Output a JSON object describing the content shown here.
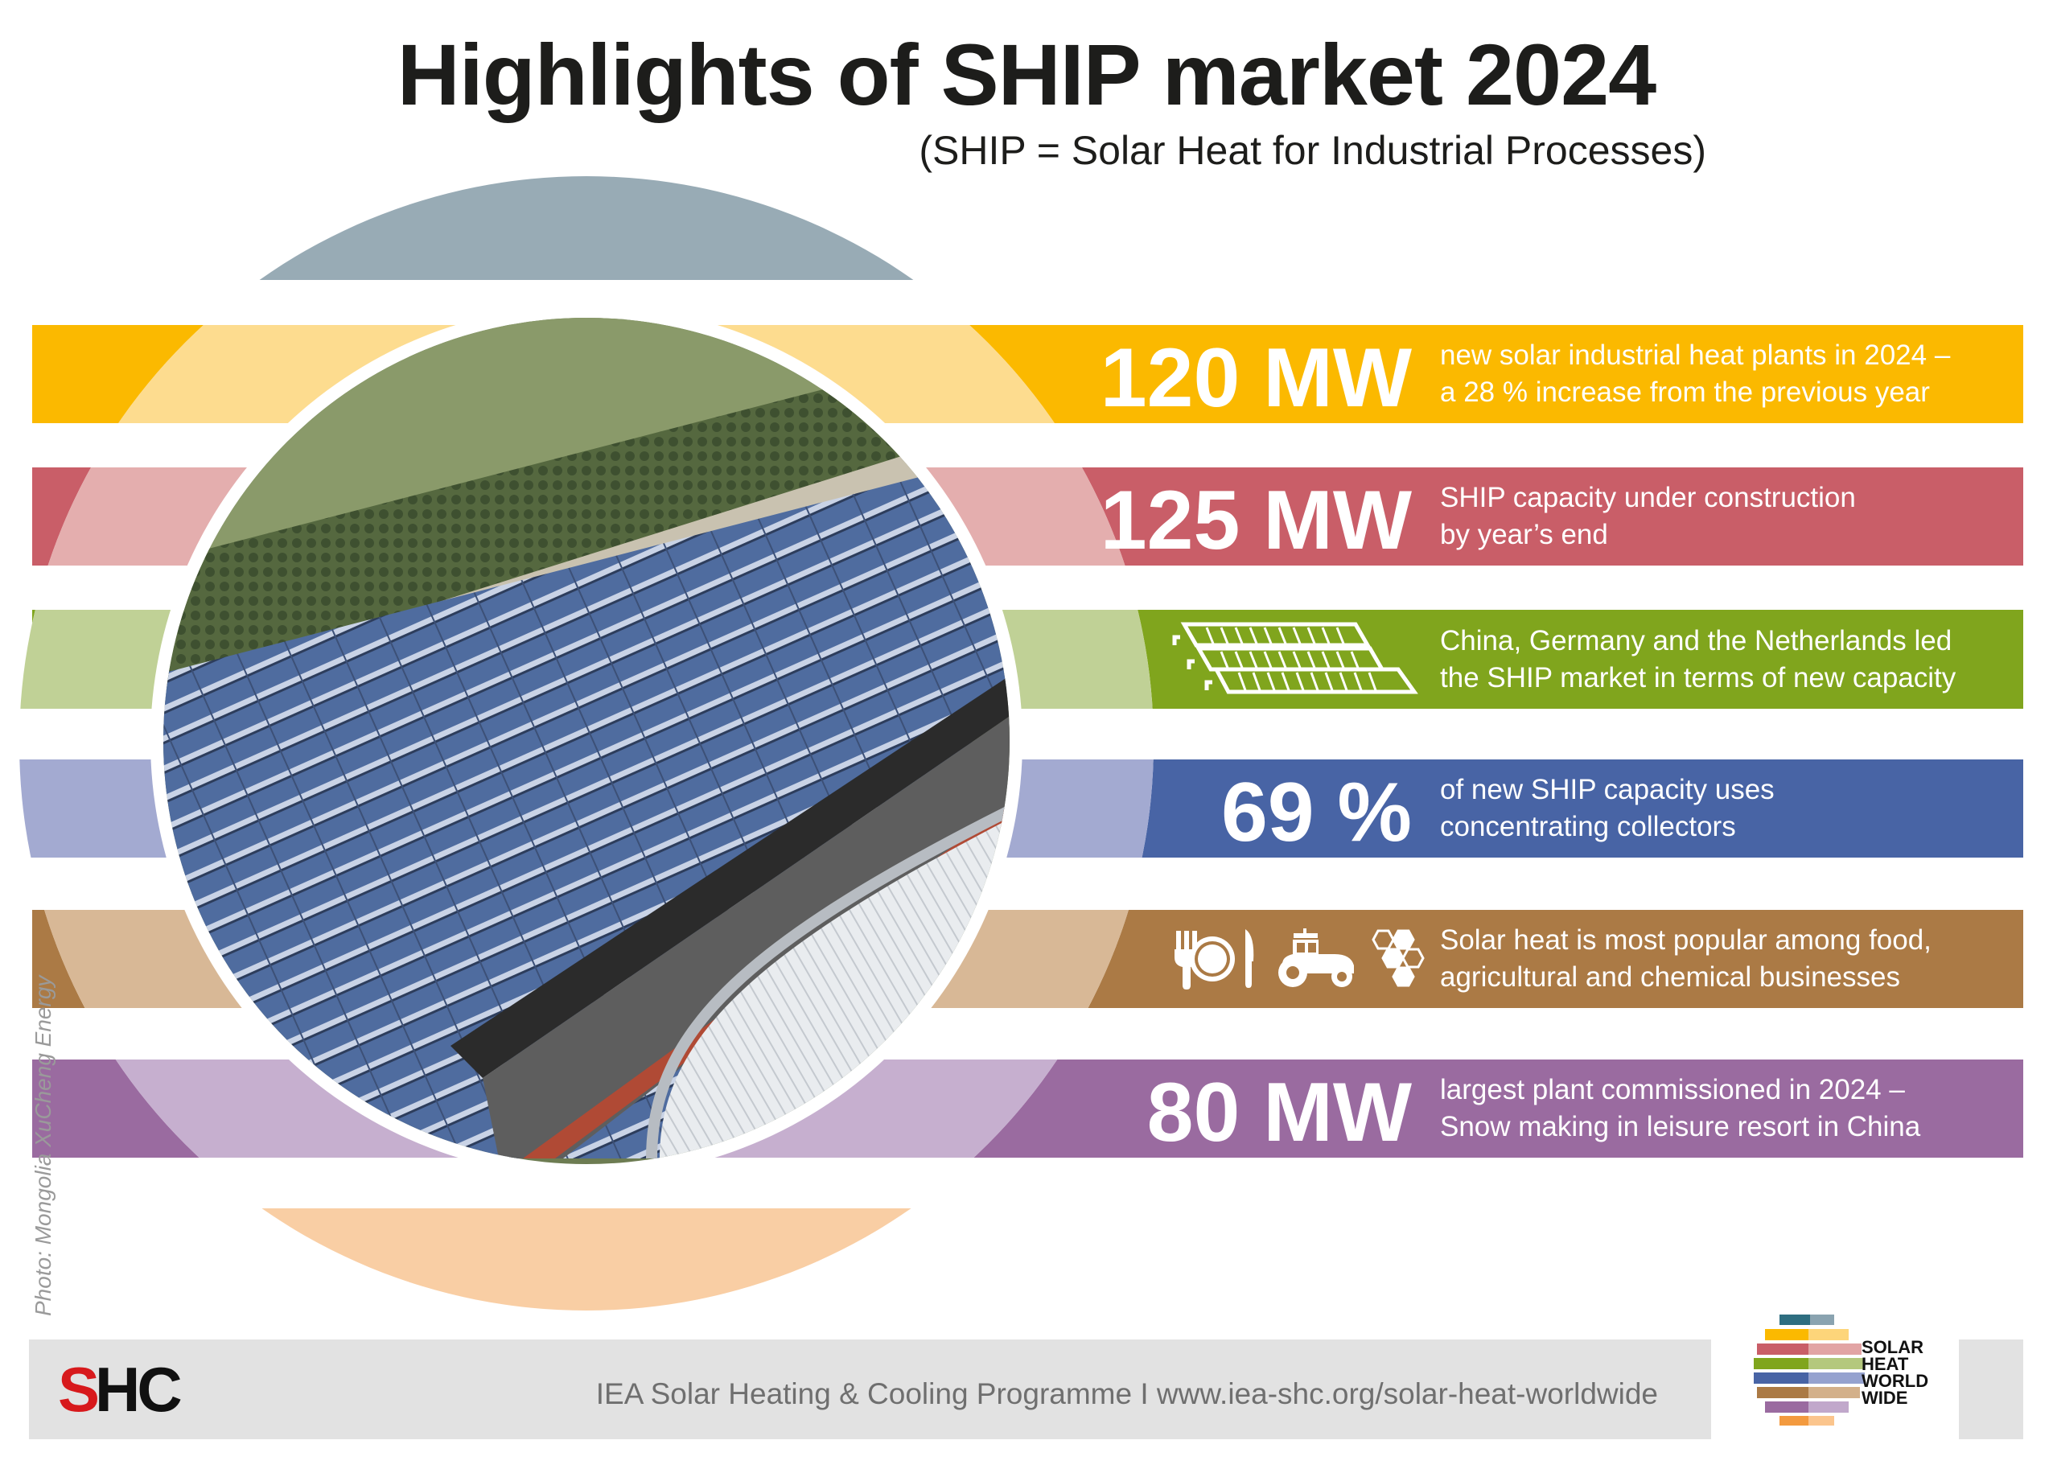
{
  "header": {
    "title": "Highlights of SHIP market 2024",
    "subtitle": "(SHIP = Solar Heat for Industrial Processes)"
  },
  "highlights": [
    {
      "value": "120 MW",
      "line1": "new solar industrial heat plants in 2024 –",
      "line2": "a 28 % increase from the previous year",
      "color": "#fbb900",
      "light": "#fddc8f"
    },
    {
      "value": "125 MW",
      "line1": "SHIP capacity under construction",
      "line2": "by year’s end",
      "color": "#c95e68",
      "light": "#e4aeae"
    },
    {
      "icon": "solar-collector-rows-icon",
      "line1": "China, Germany and the Netherlands led",
      "line2": "the SHIP market in terms of new capacity",
      "color": "#80a51d",
      "light": "#c0d196"
    },
    {
      "value": "69 %",
      "line1": "of new SHIP capacity uses",
      "line2": "concentrating collectors",
      "color": "#4864a5",
      "light": "#a3aad1"
    },
    {
      "icons": [
        "food-cutlery-plate-icon",
        "tractor-icon",
        "chemistry-hexagon-icon"
      ],
      "line1": "Solar heat is most popular among food,",
      "line2": "agricultural and chemical businesses",
      "color": "#ab7a45",
      "light": "#d8b896"
    },
    {
      "value": "80 MW",
      "line1": "largest plant commissioned in 2024 –",
      "line2": "Snow making in leisure resort in China",
      "color": "#9a6ba0",
      "light": "#c6afcf"
    }
  ],
  "caps": {
    "top": "#98abb5",
    "bottom": "#f9cea4"
  },
  "photo_credit": "Photo: Mongolia XuCheng Energy",
  "footer": {
    "logo_left": "SHC",
    "text": "IEA Solar Heating & Cooling Programme I www.iea-shc.org/solar-heat-worldwide",
    "logo_right": [
      "SOLAR",
      "HEAT",
      "WORLD",
      "WIDE"
    ]
  }
}
